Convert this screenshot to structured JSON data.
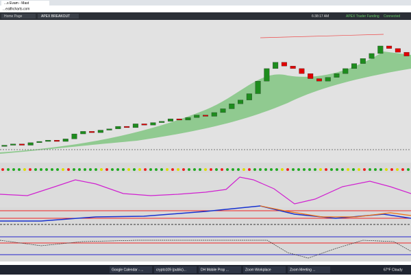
{
  "browser": {
    "tab": "...s Evam - Mast",
    "url": "...ealthcharts.com"
  },
  "toolbar": {
    "page": "Home Page",
    "strategy": "APEX BREAKOUT",
    "time": "6:38:17 AM",
    "account": "APEX Trader Funding",
    "status": "Connected"
  },
  "chart_data": {
    "type": "candlestick",
    "opens": [
      8,
      9,
      10,
      9,
      11,
      12,
      13,
      12,
      14,
      18,
      20,
      19,
      21,
      22,
      24,
      23,
      26,
      25,
      27,
      28,
      30,
      29,
      31,
      33,
      32,
      35,
      38,
      42,
      45,
      50,
      60,
      70,
      75,
      72,
      70,
      66,
      62,
      60,
      63,
      66,
      70,
      74,
      78,
      82,
      88,
      86,
      83
    ],
    "closes": [
      9,
      10,
      9,
      11,
      12,
      13,
      12,
      14,
      18,
      20,
      19,
      21,
      22,
      24,
      23,
      26,
      25,
      27,
      28,
      30,
      29,
      31,
      33,
      32,
      35,
      38,
      42,
      45,
      50,
      60,
      70,
      75,
      72,
      70,
      66,
      62,
      60,
      63,
      66,
      70,
      74,
      78,
      82,
      88,
      86,
      83,
      80
    ],
    "ylim": [
      0,
      100
    ],
    "up_color": "#1e8c1e",
    "down_color": "#e00000"
  },
  "taskbar": {
    "items": [
      "Google Calendar - ...",
      "crypto109 (public)...",
      "DH Mobile Prop ...",
      "Zoom Workplace",
      "Zoom Meeting ..."
    ],
    "weather": "67°F Cloudy"
  }
}
